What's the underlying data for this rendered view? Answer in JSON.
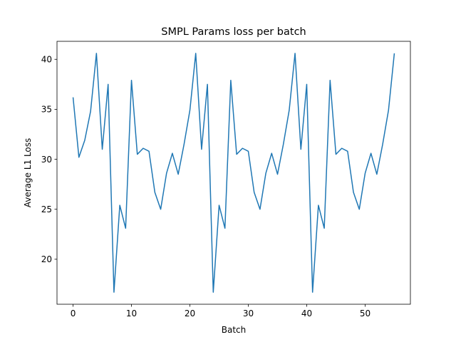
{
  "chart_data": {
    "type": "line",
    "title": "SMPL Params loss per batch",
    "xlabel": "Batch",
    "ylabel": "Average L1 Loss",
    "xlim": [
      -2.75,
      57.75
    ],
    "ylim": [
      15.5,
      41.8
    ],
    "xticks": [
      0,
      10,
      20,
      30,
      40,
      50
    ],
    "yticks": [
      20,
      25,
      30,
      35,
      40
    ],
    "grid": false,
    "series": [
      {
        "color": "#1f77b4",
        "x": [
          0,
          1,
          2,
          3,
          4,
          5,
          6,
          7,
          8,
          9,
          10,
          11,
          12,
          13,
          14,
          15,
          16,
          17,
          18,
          19,
          20,
          21,
          22,
          23,
          24,
          25,
          26,
          27,
          28,
          29,
          30,
          31,
          32,
          33,
          34,
          35,
          36,
          37,
          38,
          39,
          40,
          41,
          42,
          43,
          44,
          45,
          46,
          47,
          48,
          49,
          50,
          51,
          52,
          53,
          54,
          55
        ],
        "y": [
          36.2,
          30.2,
          31.9,
          34.8,
          40.6,
          31.0,
          37.5,
          16.7,
          25.4,
          23.1,
          37.9,
          30.5,
          31.1,
          30.8,
          26.7,
          25.0,
          28.6,
          30.6,
          28.5,
          31.5,
          34.9,
          40.6,
          31.0,
          37.5,
          16.7,
          25.4,
          23.1,
          37.9,
          30.5,
          31.1,
          30.8,
          26.7,
          25.0,
          28.6,
          30.6,
          28.5,
          31.5,
          34.9,
          40.6,
          31.0,
          37.5,
          16.7,
          25.4,
          23.1,
          37.9,
          30.5,
          31.1,
          30.8,
          26.7,
          25.0,
          28.6,
          30.6,
          28.5,
          31.5,
          34.9,
          40.6
        ]
      }
    ]
  }
}
